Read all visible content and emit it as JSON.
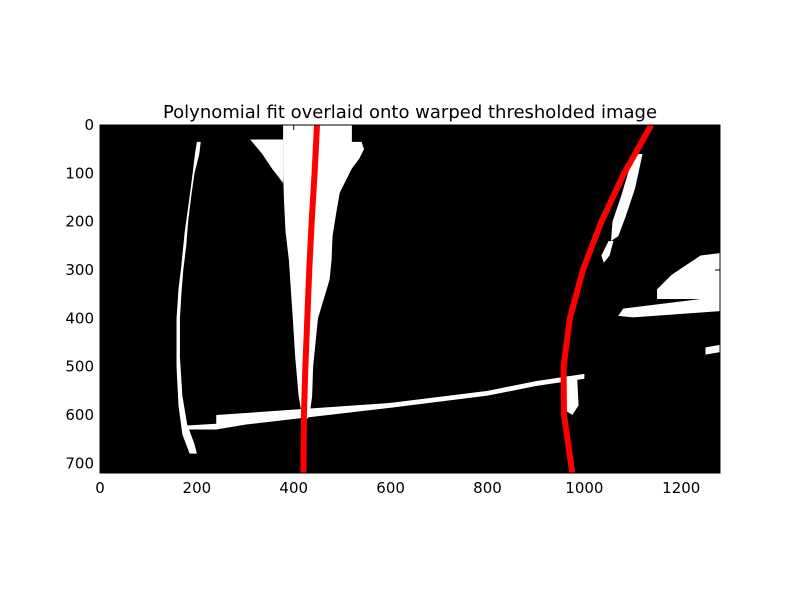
{
  "chart_data": {
    "type": "image_with_curves",
    "title": "Polynomial fit overlaid onto warped thresholded image",
    "xlabel": "",
    "ylabel": "",
    "xlim": [
      0,
      1280
    ],
    "ylim": [
      720,
      0
    ],
    "xticks": [
      0,
      200,
      400,
      600,
      800,
      1000,
      1200
    ],
    "yticks": [
      0,
      100,
      200,
      300,
      400,
      500,
      600,
      700
    ],
    "grid": false,
    "legend": "none",
    "background_color": "#000000",
    "foreground_color": "#ffffff",
    "series": [
      {
        "color": "#ff0000",
        "x": [
          448,
          443,
          437,
          432,
          428,
          424,
          421,
          420
        ],
        "y": [
          0,
          100,
          200,
          300,
          400,
          500,
          600,
          720
        ]
      },
      {
        "color": "#ff0000",
        "x": [
          1138,
          1082,
          1035,
          997,
          970,
          957,
          958,
          975
        ],
        "y": [
          0,
          100,
          200,
          300,
          400,
          500,
          600,
          720
        ]
      }
    ],
    "white_regions": [
      {
        "name": "left-lane-marking",
        "points": [
          [
            200,
            35
          ],
          [
            208,
            35
          ],
          [
            205,
            60
          ],
          [
            195,
            100
          ],
          [
            188,
            150
          ],
          [
            182,
            200
          ],
          [
            178,
            250
          ],
          [
            172,
            300
          ],
          [
            168,
            350
          ],
          [
            165,
            400
          ],
          [
            165,
            480
          ],
          [
            170,
            560
          ],
          [
            180,
            620
          ],
          [
            195,
            660
          ],
          [
            200,
            680
          ],
          [
            185,
            680
          ],
          [
            170,
            640
          ],
          [
            162,
            580
          ],
          [
            158,
            500
          ],
          [
            158,
            400
          ],
          [
            162,
            340
          ],
          [
            168,
            290
          ],
          [
            175,
            220
          ],
          [
            182,
            170
          ],
          [
            190,
            110
          ],
          [
            196,
            60
          ]
        ]
      },
      {
        "name": "center-blob",
        "points": [
          [
            378,
            0
          ],
          [
            520,
            0
          ],
          [
            520,
            35
          ],
          [
            540,
            35
          ],
          [
            545,
            50
          ],
          [
            535,
            70
          ],
          [
            520,
            90
          ],
          [
            510,
            110
          ],
          [
            495,
            140
          ],
          [
            488,
            180
          ],
          [
            480,
            230
          ],
          [
            478,
            280
          ],
          [
            474,
            320
          ],
          [
            462,
            360
          ],
          [
            450,
            400
          ],
          [
            445,
            450
          ],
          [
            440,
            500
          ],
          [
            438,
            560
          ],
          [
            433,
            600
          ],
          [
            420,
            620
          ],
          [
            410,
            560
          ],
          [
            403,
            480
          ],
          [
            398,
            400
          ],
          [
            394,
            340
          ],
          [
            390,
            280
          ],
          [
            383,
            220
          ],
          [
            380,
            160
          ],
          [
            378,
            100
          ]
        ]
      },
      {
        "name": "center-top-triangle",
        "points": [
          [
            310,
            30
          ],
          [
            378,
            30
          ],
          [
            378,
            120
          ],
          [
            355,
            90
          ],
          [
            335,
            60
          ]
        ]
      },
      {
        "name": "right-upper-lane",
        "points": [
          [
            1100,
            60
          ],
          [
            1120,
            60
          ],
          [
            1105,
            130
          ],
          [
            1085,
            190
          ],
          [
            1070,
            230
          ],
          [
            1055,
            240
          ],
          [
            1058,
            200
          ],
          [
            1075,
            150
          ],
          [
            1090,
            100
          ]
        ]
      },
      {
        "name": "right-mid-blob",
        "points": [
          [
            1050,
            240
          ],
          [
            1060,
            240
          ],
          [
            1052,
            270
          ],
          [
            1040,
            285
          ],
          [
            1035,
            270
          ]
        ]
      },
      {
        "name": "right-lane-bottom",
        "points": [
          [
            960,
            520
          ],
          [
            985,
            520
          ],
          [
            988,
            580
          ],
          [
            975,
            600
          ],
          [
            960,
            590
          ]
        ]
      },
      {
        "name": "horizontal-road-edge",
        "points": [
          [
            240,
            600
          ],
          [
            600,
            575
          ],
          [
            800,
            550
          ],
          [
            900,
            530
          ],
          [
            1000,
            515
          ],
          [
            1000,
            525
          ],
          [
            900,
            540
          ],
          [
            800,
            560
          ],
          [
            600,
            585
          ],
          [
            300,
            620
          ],
          [
            240,
            630
          ],
          [
            175,
            630
          ],
          [
            175,
            622
          ],
          [
            240,
            618
          ]
        ]
      },
      {
        "name": "right-barrier",
        "points": [
          [
            1240,
            270
          ],
          [
            1280,
            265
          ],
          [
            1280,
            360
          ],
          [
            1150,
            360
          ],
          [
            1150,
            340
          ],
          [
            1180,
            310
          ],
          [
            1210,
            290
          ]
        ]
      },
      {
        "name": "right-barrier-low",
        "points": [
          [
            1080,
            380
          ],
          [
            1280,
            355
          ],
          [
            1280,
            385
          ],
          [
            1100,
            398
          ],
          [
            1070,
            395
          ]
        ]
      },
      {
        "name": "lower-right-lines",
        "points": [
          [
            1250,
            460
          ],
          [
            1280,
            455
          ],
          [
            1280,
            470
          ],
          [
            1250,
            475
          ]
        ]
      }
    ]
  }
}
